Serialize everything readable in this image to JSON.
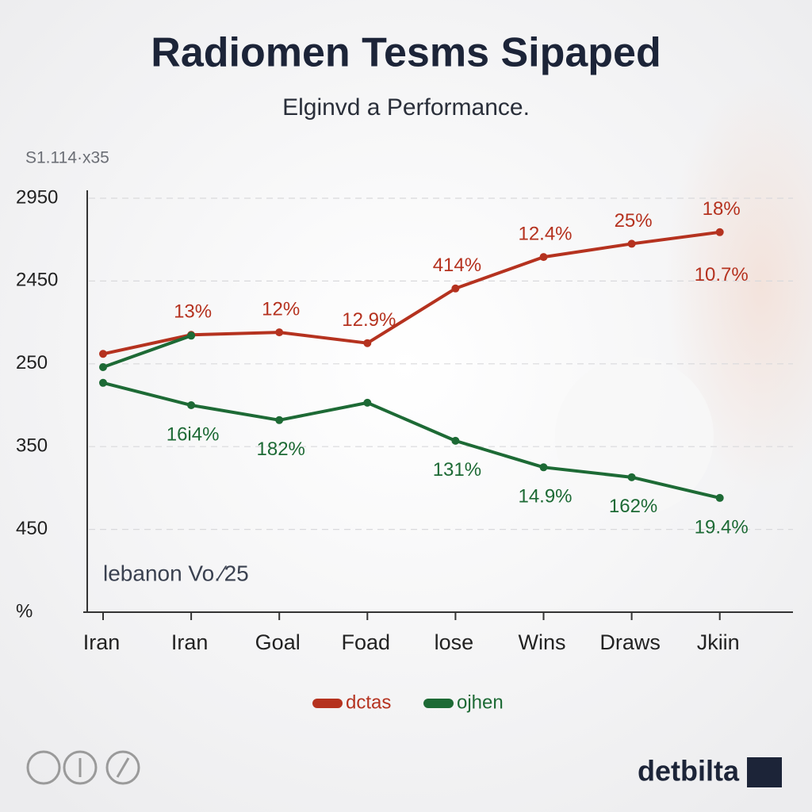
{
  "chart_data": {
    "type": "line",
    "title": "Radiomen Tesms Sipaped",
    "subtitle": "Elginvd a Performance.",
    "note": "S1.114·x35",
    "inner_label": "lebanon Vo.⁄25",
    "brand": "detbilta",
    "categories": [
      "Iran",
      "Iran",
      "Goal",
      "Foad",
      "lose",
      "Wins",
      "Draws",
      "Jkiin"
    ],
    "ylim": [
      0,
      5
    ],
    "yticks": [
      {
        "value": 0,
        "label": "%"
      },
      {
        "value": 1,
        "label": "450"
      },
      {
        "value": 2,
        "label": "350"
      },
      {
        "value": 3,
        "label": "250"
      },
      {
        "value": 4,
        "label": "2450"
      },
      {
        "value": 5,
        "label": "2950"
      }
    ],
    "grid": true,
    "legend": "bottom",
    "series": [
      {
        "name": "dctas",
        "color": "#b5321f",
        "values": [
          3.12,
          3.35,
          3.38,
          3.25,
          3.91,
          4.29,
          4.45,
          4.59
        ],
        "value_labels": [
          null,
          "13%",
          "12%",
          "12.9%",
          "414%",
          "12.4%",
          "25%",
          "18%"
        ],
        "extra_labels": [
          null,
          null,
          null,
          null,
          null,
          null,
          null,
          "10.7%"
        ]
      },
      {
        "name": "ojhen",
        "color": "#1d6a35",
        "values": [
          2.77,
          2.5,
          2.32,
          2.53,
          2.07,
          1.75,
          1.63,
          1.38
        ],
        "value_labels": [
          null,
          "16i4%",
          "182%",
          null,
          "131%",
          "14.9%",
          "162%",
          "19.4%"
        ]
      },
      {
        "color": "#1d6a35",
        "values": [
          2.96,
          3.34,
          null,
          null,
          null,
          null,
          null,
          null
        ]
      }
    ]
  }
}
